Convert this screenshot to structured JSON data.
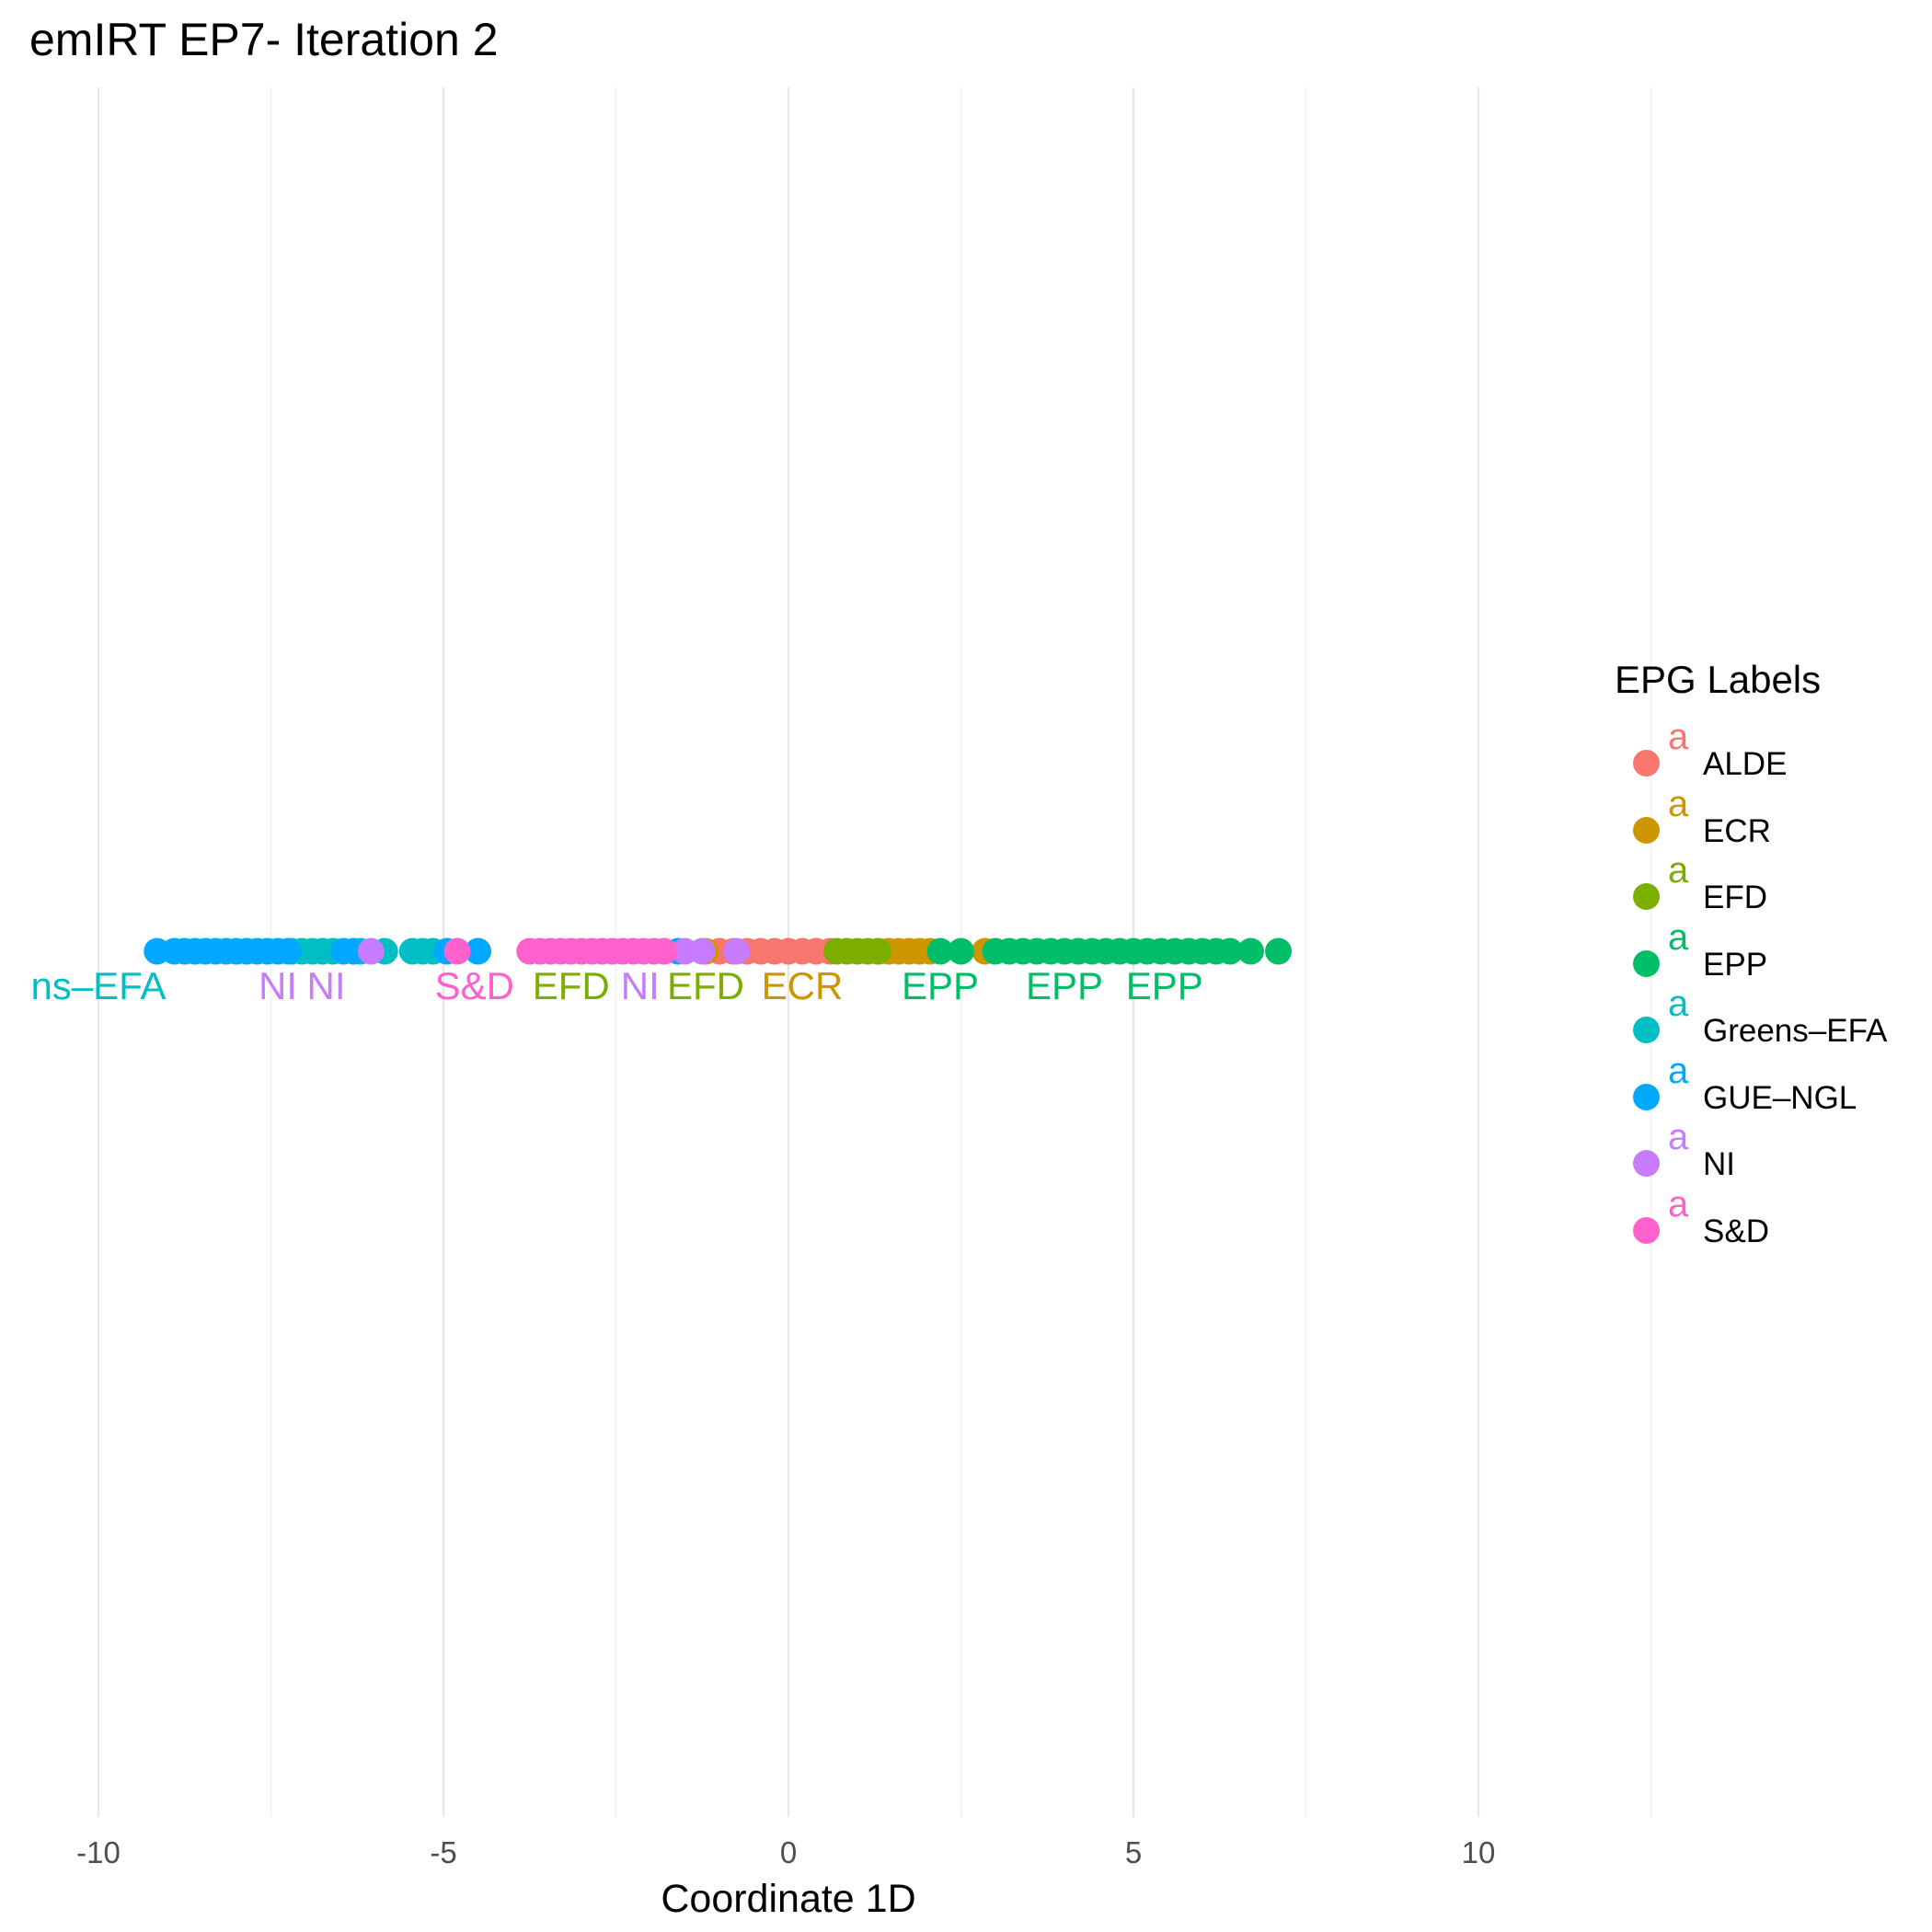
{
  "chart_data": {
    "type": "scatter",
    "title": "emIRT EP7- Iteration 2",
    "xlabel": "Coordinate 1D",
    "ylabel": "",
    "xlim": [
      -10.5,
      13.0
    ],
    "x_ticks": [
      -10,
      -5,
      0,
      5,
      10
    ],
    "x_tick_labels": [
      "-10",
      "-5",
      "0",
      "5",
      "10"
    ],
    "grid": "vertical major and minor lines",
    "legend": {
      "title": "EPG Labels",
      "placement": "right",
      "key_glyph": "a"
    },
    "series": [
      {
        "name": "ALDE",
        "color": "#F8766D",
        "x": [
          -1.0,
          -0.8,
          -0.6,
          -0.4,
          -0.2,
          0.0,
          0.2,
          0.4,
          0.6
        ]
      },
      {
        "name": "ECR",
        "color": "#CD9600",
        "x": [
          -1.2,
          1.3,
          1.45,
          1.6,
          1.75,
          1.9,
          2.05,
          2.85
        ]
      },
      {
        "name": "EFD",
        "color": "#7CAE00",
        "x": [
          0.7,
          0.85,
          1.0,
          1.15,
          1.3
        ]
      },
      {
        "name": "EPP",
        "color": "#00BE67",
        "x": [
          2.2,
          2.5,
          3.0,
          3.2,
          3.4,
          3.6,
          3.8,
          4.0,
          4.2,
          4.4,
          4.6,
          4.8,
          5.0,
          5.2,
          5.4,
          5.6,
          5.8,
          6.0,
          6.2,
          6.4,
          6.7,
          7.1
        ]
      },
      {
        "name": "Greens–EFA",
        "color": "#00BFC4",
        "x": [
          -7.2,
          -7.05,
          -6.9,
          -6.75,
          -6.6,
          -6.2,
          -5.85,
          -5.45,
          -5.3,
          -5.15
        ]
      },
      {
        "name": "GUE–NGL",
        "color": "#00A9FF",
        "x": [
          -9.15,
          -8.9,
          -8.75,
          -8.6,
          -8.45,
          -8.3,
          -8.15,
          -8.0,
          -7.85,
          -7.7,
          -7.55,
          -7.4,
          -7.25,
          -6.45,
          -6.3,
          -4.95,
          -4.5,
          -1.6
        ]
      },
      {
        "name": "NI",
        "color": "#C77CFF",
        "x": [
          -6.05,
          -1.5,
          -1.25,
          -0.75
        ]
      },
      {
        "name": "S&D",
        "color": "#FF61CC",
        "x": [
          -4.8,
          -3.75,
          -3.6,
          -3.45,
          -3.3,
          -3.15,
          -3.0,
          -2.85,
          -2.7,
          -2.55,
          -2.4,
          -2.25,
          -2.1,
          -1.95,
          -1.8
        ]
      }
    ],
    "annotations": [
      {
        "text": "ns–EFA",
        "x": -10.0,
        "series": "Greens–EFA"
      },
      {
        "text": "NI",
        "x": -7.4,
        "series": "NI"
      },
      {
        "text": "NI",
        "x": -6.7,
        "series": "NI"
      },
      {
        "text": "S&D",
        "x": -4.55,
        "series": "S&D"
      },
      {
        "text": "EFD",
        "x": -3.15,
        "series": "EFD"
      },
      {
        "text": "NI",
        "x": -2.15,
        "series": "NI"
      },
      {
        "text": "EFD",
        "x": -1.2,
        "series": "EFD"
      },
      {
        "text": "ECR",
        "x": 0.2,
        "series": "ECR"
      },
      {
        "text": "EPP",
        "x": 2.2,
        "series": "EPP"
      },
      {
        "text": "EPP",
        "x": 4.0,
        "series": "EPP"
      },
      {
        "text": "EPP",
        "x": 5.45,
        "series": "EPP"
      }
    ]
  }
}
